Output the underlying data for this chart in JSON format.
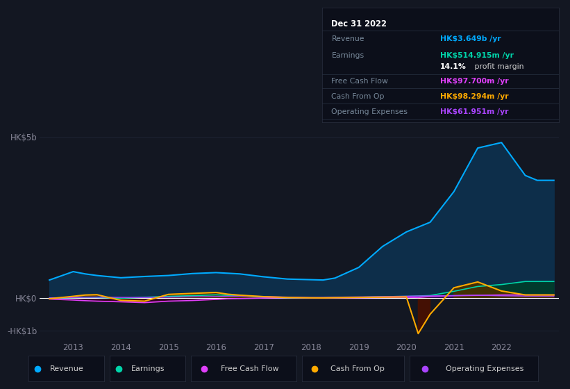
{
  "bg_color": "#131722",
  "plot_bg_color": "#131722",
  "grid_color": "#1e2535",
  "zero_line_color": "#ffffff",
  "ylabel_5b": "HK$5b",
  "ylabel_0": "HK$0",
  "ylabel_neg1b": "-HK$1b",
  "years": [
    2012.5,
    2013.0,
    2013.25,
    2013.5,
    2014.0,
    2014.5,
    2015.0,
    2015.5,
    2016.0,
    2016.25,
    2016.5,
    2017.0,
    2017.5,
    2018.0,
    2018.25,
    2018.5,
    2019.0,
    2019.5,
    2020.0,
    2020.25,
    2020.5,
    2021.0,
    2021.5,
    2022.0,
    2022.5,
    2022.75,
    2023.1
  ],
  "revenue": [
    560,
    820,
    750,
    700,
    630,
    670,
    700,
    760,
    790,
    770,
    750,
    660,
    590,
    570,
    560,
    620,
    950,
    1600,
    2050,
    2200,
    2350,
    3300,
    4650,
    4820,
    3800,
    3649,
    3649
  ],
  "earnings": [
    0,
    15,
    25,
    20,
    -5,
    25,
    55,
    75,
    100,
    85,
    80,
    25,
    12,
    5,
    8,
    15,
    25,
    45,
    55,
    65,
    80,
    210,
    360,
    420,
    514,
    514,
    514
  ],
  "free_cash_flow": [
    -30,
    -60,
    -80,
    -95,
    -115,
    -140,
    -95,
    -75,
    -40,
    -20,
    -15,
    2,
    15,
    8,
    5,
    8,
    12,
    18,
    25,
    18,
    50,
    75,
    85,
    97,
    97,
    97,
    97
  ],
  "cash_from_op": [
    -20,
    55,
    95,
    105,
    -70,
    -95,
    115,
    145,
    175,
    120,
    90,
    45,
    18,
    8,
    5,
    12,
    22,
    28,
    38,
    -1100,
    -500,
    320,
    500,
    220,
    98,
    98,
    98
  ],
  "operating_expenses": [
    8,
    18,
    25,
    28,
    22,
    18,
    28,
    38,
    48,
    58,
    62,
    52,
    32,
    18,
    22,
    28,
    38,
    48,
    58,
    65,
    68,
    78,
    88,
    72,
    62,
    62,
    62
  ],
  "revenue_color": "#00aaff",
  "revenue_fill_color": "#0d2e4a",
  "earnings_color": "#00d4aa",
  "earnings_fill_color": "#003d2a",
  "fcf_color": "#e040fb",
  "fcf_fill_color_pos": "#2d0a40",
  "fcf_fill_color_neg": "#3d0020",
  "cashop_color": "#ffaa00",
  "cashop_fill_positive": "#4a3000",
  "cashop_fill_negative": "#4a1000",
  "opex_color": "#aa44ff",
  "opex_fill_color": "#2a0a50",
  "ylim_min": -1250,
  "ylim_max": 5500,
  "xlim_min": 2012.3,
  "xlim_max": 2023.2,
  "info_box": {
    "date": "Dec 31 2022",
    "revenue_label": "Revenue",
    "revenue_value": "HK$3.649b",
    "revenue_color": "#00aaff",
    "earnings_label": "Earnings",
    "earnings_value": "HK$514.915m",
    "earnings_color": "#00d4aa",
    "margin_pct": "14.1%",
    "margin_rest": " profit margin",
    "fcf_label": "Free Cash Flow",
    "fcf_value": "HK$97.700m",
    "fcf_color": "#e040fb",
    "cashop_label": "Cash From Op",
    "cashop_value": "HK$98.294m",
    "cashop_color": "#ffaa00",
    "opex_label": "Operating Expenses",
    "opex_value": "HK$61.951m",
    "opex_color": "#aa44ff"
  },
  "legend": [
    {
      "label": "Revenue",
      "color": "#00aaff"
    },
    {
      "label": "Earnings",
      "color": "#00d4aa"
    },
    {
      "label": "Free Cash Flow",
      "color": "#e040fb"
    },
    {
      "label": "Cash From Op",
      "color": "#ffaa00"
    },
    {
      "label": "Operating Expenses",
      "color": "#aa44ff"
    }
  ],
  "xticks": [
    2013,
    2014,
    2015,
    2016,
    2017,
    2018,
    2019,
    2020,
    2021,
    2022
  ]
}
